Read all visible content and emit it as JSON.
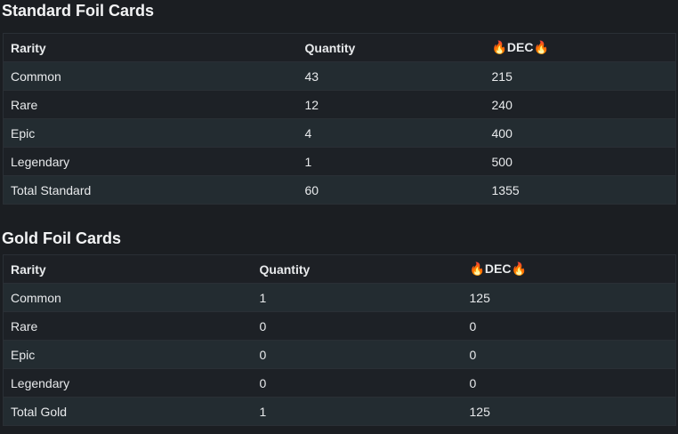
{
  "sections": [
    {
      "title": "Standard Foil Cards",
      "table": {
        "header": [
          "Rarity",
          "Quantity",
          "🔥DEC🔥"
        ],
        "rows": [
          [
            "Common",
            43,
            215
          ],
          [
            "Rare",
            12,
            240
          ],
          [
            "Epic",
            4,
            400
          ],
          [
            "Legendary",
            1,
            500
          ],
          [
            "Total Standard",
            60,
            1355
          ]
        ]
      }
    },
    {
      "title": "Gold Foil Cards",
      "table": {
        "header": [
          "Rarity",
          "Quantity",
          "🔥DEC🔥"
        ],
        "rows": [
          [
            "Common",
            1,
            125
          ],
          [
            "Rare",
            0,
            0
          ],
          [
            "Epic",
            0,
            0
          ],
          [
            "Legendary",
            0,
            0
          ],
          [
            "Total Gold",
            1,
            125
          ]
        ]
      }
    }
  ]
}
